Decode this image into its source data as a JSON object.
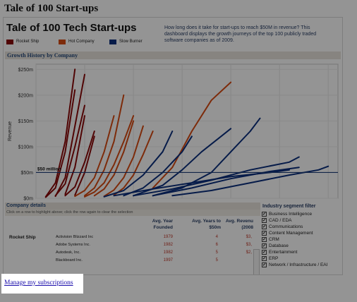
{
  "page": {
    "title": "Tale of 100 Start-ups"
  },
  "dashboard": {
    "title": "Tale of 100 Tech Start-ups",
    "description": "How long does it take for start-ups to reach $50M in revenue? This dashboard displays the growth journeys of the top 100 publicly traded software companies as of 2009.",
    "legend": [
      {
        "label": "Rocket Ship",
        "color": "#8b0a0a"
      },
      {
        "label": "Hot Company",
        "color": "#d84a12"
      },
      {
        "label": "Slow Burner",
        "color": "#0b2f7e"
      }
    ]
  },
  "growth": {
    "section_title": "Growth History by Company",
    "ylabel": "Revenue",
    "reference_label": "$50 million"
  },
  "chart_data": {
    "type": "line",
    "title": "Growth History by Company",
    "ylabel": "Revenue",
    "xlim": [
      0,
      31
    ],
    "ylim": [
      0,
      260
    ],
    "x_ticks": [
      0,
      5,
      10,
      15,
      20,
      25,
      30
    ],
    "y_ticks": [
      {
        "value": 0,
        "label": "$0m"
      },
      {
        "value": 50,
        "label": "$50m"
      },
      {
        "value": 100,
        "label": "$100m"
      },
      {
        "value": 150,
        "label": "$150m"
      },
      {
        "value": 200,
        "label": "$200m"
      },
      {
        "value": 250,
        "label": "$250m"
      }
    ],
    "reference_line": {
      "value": 50,
      "label": "$50 million"
    },
    "series": [
      {
        "group": "Rocket Ship",
        "x": [
          1,
          2,
          3,
          4
        ],
        "y": [
          2,
          20,
          90,
          210
        ]
      },
      {
        "group": "Rocket Ship",
        "x": [
          1,
          2,
          3,
          4
        ],
        "y": [
          3,
          30,
          110,
          250
        ]
      },
      {
        "group": "Rocket Ship",
        "x": [
          2,
          3,
          4,
          5
        ],
        "y": [
          5,
          28,
          100,
          180
        ]
      },
      {
        "group": "Rocket Ship",
        "x": [
          2,
          3,
          4,
          5
        ],
        "y": [
          4,
          40,
          140,
          240
        ]
      },
      {
        "group": "Rocket Ship",
        "x": [
          3,
          4,
          5
        ],
        "y": [
          8,
          60,
          160
        ]
      },
      {
        "group": "Rocket Ship",
        "x": [
          3,
          4,
          5,
          6
        ],
        "y": [
          5,
          22,
          70,
          130
        ]
      },
      {
        "group": "Rocket Ship",
        "x": [
          4,
          5,
          6
        ],
        "y": [
          6,
          50,
          120
        ]
      },
      {
        "group": "Hot Company",
        "x": [
          4,
          5,
          6,
          7,
          8
        ],
        "y": [
          4,
          15,
          40,
          90,
          160
        ]
      },
      {
        "group": "Hot Company",
        "x": [
          5,
          6,
          7,
          8,
          9
        ],
        "y": [
          5,
          20,
          55,
          110,
          200
        ]
      },
      {
        "group": "Hot Company",
        "x": [
          5,
          6,
          7,
          8,
          9,
          10
        ],
        "y": [
          3,
          12,
          30,
          65,
          110,
          160
        ]
      },
      {
        "group": "Hot Company",
        "x": [
          6,
          7,
          8,
          9,
          10
        ],
        "y": [
          5,
          18,
          45,
          90,
          150
        ]
      },
      {
        "group": "Hot Company",
        "x": [
          7,
          8,
          9,
          10,
          11
        ],
        "y": [
          4,
          16,
          40,
          80,
          140
        ]
      },
      {
        "group": "Hot Company",
        "x": [
          8,
          9,
          10,
          11,
          12
        ],
        "y": [
          6,
          20,
          45,
          85,
          130
        ]
      },
      {
        "group": "Hot Company",
        "x": [
          12,
          14,
          16,
          18,
          20
        ],
        "y": [
          20,
          60,
          130,
          190,
          225
        ]
      },
      {
        "group": "Slow Burner",
        "x": [
          7,
          9,
          11,
          13,
          14
        ],
        "y": [
          3,
          15,
          45,
          90,
          130
        ]
      },
      {
        "group": "Slow Burner",
        "x": [
          9,
          11,
          13,
          15,
          16
        ],
        "y": [
          5,
          20,
          50,
          90,
          120
        ]
      },
      {
        "group": "Slow Burner",
        "x": [
          10,
          13,
          15,
          17,
          19,
          20
        ],
        "y": [
          5,
          25,
          55,
          90,
          120,
          135
        ]
      },
      {
        "group": "Slow Burner",
        "x": [
          12,
          15,
          18,
          20,
          22,
          23
        ],
        "y": [
          5,
          20,
          50,
          90,
          130,
          155
        ]
      },
      {
        "group": "Slow Burner",
        "x": [
          10,
          14,
          18,
          22,
          26,
          27
        ],
        "y": [
          5,
          18,
          35,
          55,
          70,
          80
        ]
      },
      {
        "group": "Slow Burner",
        "x": [
          12,
          16,
          20,
          24,
          27
        ],
        "y": [
          5,
          20,
          38,
          52,
          60
        ]
      },
      {
        "group": "Slow Burner",
        "x": [
          14,
          18,
          22,
          26,
          29,
          30
        ],
        "y": [
          5,
          15,
          30,
          45,
          55,
          62
        ]
      },
      {
        "group": "Slow Burner",
        "x": [
          8,
          12,
          16,
          20,
          24,
          26
        ],
        "y": [
          5,
          18,
          30,
          42,
          50,
          55
        ]
      }
    ]
  },
  "company_details": {
    "title": "Company details",
    "instruction": "Click on a row to highlight above; click the row again to clear the selection",
    "columns": [
      "Avg. Year Founded",
      "Avg. Years to $50m",
      "Avg. Revenu (2008"
    ],
    "rows": [
      {
        "segment": "Rocket Ship",
        "company": "Activision Blizzard Inc",
        "year": "1979",
        "years50": "4",
        "rev": "$3,"
      },
      {
        "segment": "",
        "company": "Adobe Systems Inc.",
        "year": "1982",
        "years50": "6",
        "rev": "$3,"
      },
      {
        "segment": "",
        "company": "Autodesk, Inc.",
        "year": "1982",
        "years50": "5",
        "rev": "$2,"
      },
      {
        "segment": "",
        "company": "Blackboard Inc.",
        "year": "1997",
        "years50": "5",
        "rev": ""
      }
    ]
  },
  "industry_filter": {
    "title": "Industry segment filter",
    "items": [
      {
        "label": "Business Intelligence",
        "checked": true
      },
      {
        "label": "CAD / EDA",
        "checked": true
      },
      {
        "label": "Communications",
        "checked": true
      },
      {
        "label": "Content Management",
        "checked": true
      },
      {
        "label": "CRM",
        "checked": true
      },
      {
        "label": "Database",
        "checked": true
      },
      {
        "label": "Entertainment",
        "checked": true
      },
      {
        "label": "ERP",
        "checked": true
      },
      {
        "label": "Network / Infrastructure / EAI",
        "checked": true
      }
    ]
  },
  "footer": {
    "manage_link": "Manage my subscriptions"
  }
}
